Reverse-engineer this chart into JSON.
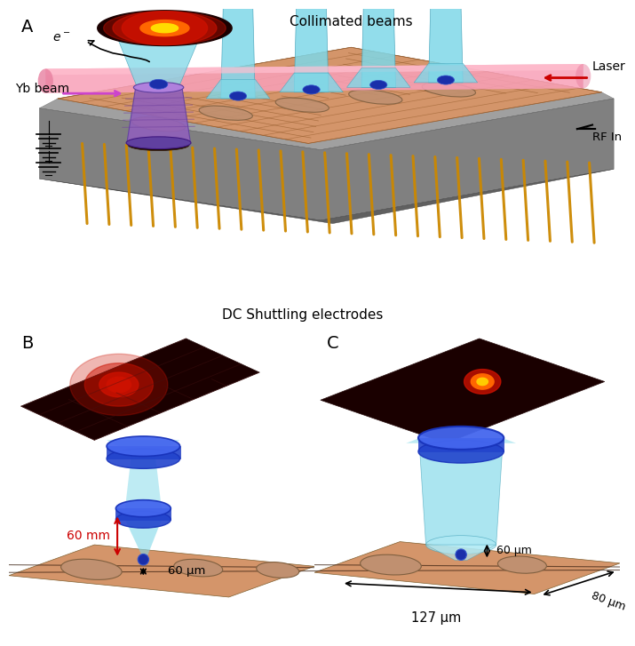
{
  "colors": {
    "trap_surface": "#d4956a",
    "trap_stripe": "#b87040",
    "gray_chip": "#909090",
    "gray_dark": "#606060",
    "pink_beam": "#f5a0b8",
    "cyan_beam": "#7fd8e8",
    "cyan_beam_light": "#b0eaf5",
    "cyan_dark": "#40a0b8",
    "purple_body": "#9060bb",
    "purple_light": "#b080dd",
    "purple_dark": "#6040a0",
    "blue_lens": "#2244cc",
    "blue_lens_light": "#4466ee",
    "blue_lens_rim": "#3355dd",
    "gold_electrode": "#cc8800",
    "dark_red_bg": "#180000",
    "red_hot": "#cc2200",
    "orange_hot": "#ff6600",
    "yellow_hot": "#ffcc00",
    "ion_blue": "#1a2faa",
    "ion_edge": "#3355cc",
    "red_arrow": "#cc0000",
    "magenta_arrow": "#cc44cc",
    "black": "#000000",
    "white": "#ffffff"
  },
  "texts": {
    "A_label": "A",
    "B_label": "B",
    "C_label": "C",
    "collimated": "Collimated beams",
    "laser": "Laser",
    "yb_beam": "Yb beam",
    "rf_in": "RF In",
    "dc_elec": "DC Shuttling electrodes",
    "e_minus": "e",
    "sixty_mm": "60 mm",
    "sixty_um_b": "60 μm",
    "sixty_um_c": "60 μm",
    "eighty_um": "80 μm",
    "oneTwentySeven_um": "127 μm"
  }
}
